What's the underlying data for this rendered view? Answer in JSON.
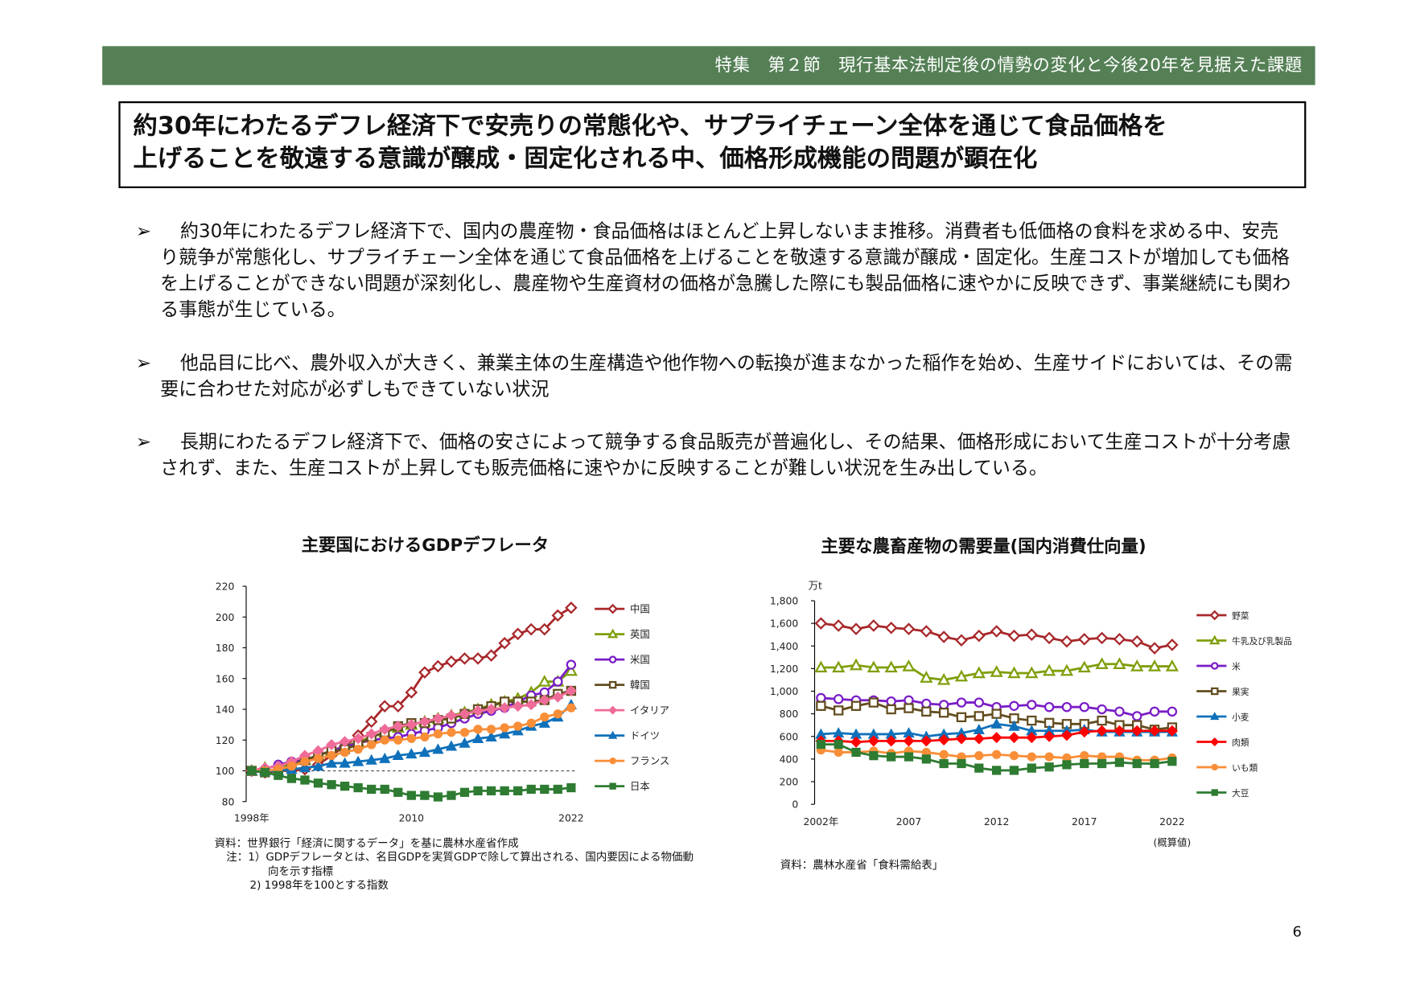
{
  "header": {
    "section": "特集　第２節　現行基本法制定後の情勢の変化と今後20年を見据えた課題"
  },
  "title": {
    "line1": "約30年にわたるデフレ経済下で安売りの常態化や、サプライチェーン全体を通じて食品価格を",
    "line2": "上げることを敬遠する意識が醸成・固定化される中、価格形成機能の問題が顕在化"
  },
  "bullet_marker": "➢",
  "bullets": [
    "約30年にわたるデフレ経済下で、国内の農産物・食品価格はほとんど上昇しないまま推移。消費者も低価格の食料を求める中、安売り競争が常態化し、サプライチェーン全体を通じて食品価格を上げることを敬遠する意識が醸成・固定化。生産コストが増加しても価格を上げることができない問題が深刻化し、農産物や生産資材の価格が急騰した際にも製品価格に速やかに反映できず、事業継続にも関わる事態が生じている。",
    "他品目に比べ、農外収入が大きく、兼業主体の生産構造や他作物への転換が進まなかった稲作を始め、生産サイドにおいては、その需要に合わせた対応が必ずしもできていない状況",
    "長期にわたるデフレ経済下で、価格の安さによって競争する食品販売が普遍化し、その結果、価格形成において生産コストが十分考慮されず、また、生産コストが上昇しても販売価格に速やかに反映することが難しい状況を生み出している。"
  ],
  "chart_data": [
    {
      "type": "line",
      "title": "主要国におけるGDPデフレータ",
      "x": [
        1998,
        1999,
        2000,
        2001,
        2002,
        2003,
        2004,
        2005,
        2006,
        2007,
        2008,
        2009,
        2010,
        2011,
        2012,
        2013,
        2014,
        2015,
        2016,
        2017,
        2018,
        2019,
        2020,
        2021,
        2022
      ],
      "x_tick_labels": [
        "1998年",
        "2010",
        "2022"
      ],
      "x_ticks": [
        1998,
        2010,
        2022
      ],
      "ylim": [
        80,
        220
      ],
      "y_ticks": [
        80,
        100,
        120,
        140,
        160,
        180,
        200,
        220
      ],
      "reference_line": 100,
      "legend_placement": "right",
      "series": [
        {
          "name": "中国",
          "color": "#A8282B",
          "marker": "diamond",
          "filled": false,
          "values": [
            100,
            99,
            100,
            100,
            101,
            104,
            110,
            116,
            123,
            132,
            142,
            142,
            151,
            164,
            168,
            171,
            173,
            173,
            175,
            183,
            189,
            192,
            192,
            201,
            206
          ]
        },
        {
          "name": "英国",
          "color": "#7F9F0A",
          "marker": "triangle",
          "filled": false,
          "values": [
            100,
            102,
            103,
            104,
            107,
            110,
            113,
            116,
            119,
            122,
            125,
            128,
            130,
            132,
            134,
            136,
            138,
            140,
            143,
            145,
            147,
            151,
            158,
            158,
            165
          ]
        },
        {
          "name": "米国",
          "color": "#7A1DC6",
          "marker": "circle",
          "filled": false,
          "values": [
            100,
            101,
            104,
            106,
            107,
            110,
            113,
            116,
            118,
            120,
            121,
            122,
            124,
            126,
            128,
            131,
            134,
            137,
            139,
            141,
            145,
            149,
            151,
            158,
            169
          ]
        },
        {
          "name": "韓国",
          "color": "#634D1F",
          "marker": "square",
          "filled": false,
          "values": [
            100,
            99,
            100,
            104,
            107,
            110,
            113,
            114,
            117,
            122,
            125,
            129,
            131,
            131,
            133,
            134,
            137,
            140,
            142,
            145,
            145,
            145,
            146,
            150,
            152
          ]
        },
        {
          "name": "イタリア",
          "color": "#F06C98",
          "marker": "diamond",
          "filled": true,
          "values": [
            100,
            102,
            103,
            106,
            110,
            113,
            117,
            119,
            121,
            124,
            127,
            129,
            130,
            132,
            134,
            136,
            137,
            139,
            140,
            141,
            142,
            143,
            146,
            148,
            152
          ]
        },
        {
          "name": "ドイツ",
          "color": "#1071BB",
          "marker": "triangle",
          "filled": true,
          "values": [
            100,
            100,
            100,
            101,
            102,
            103,
            105,
            105,
            106,
            107,
            108,
            110,
            111,
            112,
            114,
            116,
            118,
            121,
            122,
            124,
            126,
            129,
            131,
            135,
            143
          ]
        },
        {
          "name": "フランス",
          "color": "#F98E38",
          "marker": "circle",
          "filled": true,
          "values": [
            100,
            100,
            101,
            103,
            106,
            108,
            110,
            112,
            114,
            117,
            120,
            120,
            121,
            122,
            124,
            125,
            125,
            127,
            127,
            128,
            129,
            131,
            135,
            137,
            141
          ]
        },
        {
          "name": "日本",
          "color": "#2E7B32",
          "marker": "square",
          "filled": true,
          "values": [
            100,
            99,
            97,
            95,
            94,
            92,
            91,
            90,
            89,
            88,
            88,
            86,
            84,
            84,
            83,
            84,
            86,
            87,
            87,
            87,
            87,
            88,
            88,
            88,
            89
          ]
        }
      ],
      "notes": [
        "資料：世界銀行「経済に関するデータ」を基に農林水産省作成",
        "注：1）GDPデフレータとは、名目GDPを実質GDPで除して算出される、国内要因による物価動向を示す指標",
        "2) 1998年を100とする指数"
      ]
    },
    {
      "type": "line",
      "title": "主要な農畜産物の需要量(国内消費仕向量)",
      "ylabel": "万t",
      "x": [
        2002,
        2003,
        2004,
        2005,
        2006,
        2007,
        2008,
        2009,
        2010,
        2011,
        2012,
        2013,
        2014,
        2015,
        2016,
        2017,
        2018,
        2019,
        2020,
        2021,
        2022
      ],
      "x_tick_labels": [
        "2002年",
        "2007",
        "2012",
        "2017",
        "2022"
      ],
      "x_ticks": [
        2002,
        2007,
        2012,
        2017,
        2022
      ],
      "x_note": "(概算値)",
      "ylim": [
        0,
        1800
      ],
      "y_ticks": [
        0,
        200,
        400,
        600,
        800,
        1000,
        1200,
        1400,
        1600,
        1800
      ],
      "y_tick_labels": [
        "0",
        "200",
        "400",
        "600",
        "800",
        "1,000",
        "1,200",
        "1,400",
        "1,600",
        "1,800"
      ],
      "legend_placement": "right",
      "series": [
        {
          "name": "野菜",
          "color": "#A8282B",
          "marker": "diamond",
          "filled": false,
          "values": [
            1600,
            1580,
            1550,
            1580,
            1560,
            1550,
            1530,
            1480,
            1450,
            1490,
            1530,
            1490,
            1500,
            1470,
            1440,
            1460,
            1470,
            1460,
            1440,
            1380,
            1410
          ]
        },
        {
          "name": "牛乳及び乳製品",
          "color": "#7F9F0A",
          "marker": "triangle",
          "filled": false,
          "values": [
            1210,
            1210,
            1230,
            1210,
            1210,
            1220,
            1120,
            1100,
            1130,
            1160,
            1170,
            1160,
            1160,
            1180,
            1180,
            1210,
            1240,
            1240,
            1220,
            1220,
            1220
          ]
        },
        {
          "name": "米",
          "color": "#7A1DC6",
          "marker": "circle",
          "filled": false,
          "values": [
            940,
            930,
            920,
            920,
            910,
            920,
            890,
            880,
            900,
            900,
            860,
            870,
            880,
            860,
            860,
            860,
            840,
            820,
            780,
            820,
            820
          ]
        },
        {
          "name": "果実",
          "color": "#634D1F",
          "marker": "square",
          "filled": false,
          "values": [
            870,
            830,
            870,
            900,
            840,
            850,
            820,
            810,
            770,
            780,
            800,
            760,
            740,
            720,
            710,
            710,
            740,
            700,
            700,
            660,
            680
          ]
        },
        {
          "name": "小麦",
          "color": "#1071BB",
          "marker": "triangle",
          "filled": true,
          "values": [
            620,
            630,
            620,
            620,
            620,
            630,
            600,
            620,
            630,
            660,
            710,
            690,
            650,
            650,
            650,
            660,
            640,
            640,
            640,
            640,
            640
          ]
        },
        {
          "name": "肉類",
          "color": "#FF0000",
          "marker": "diamond",
          "filled": true,
          "values": [
            560,
            560,
            550,
            560,
            560,
            560,
            560,
            570,
            580,
            580,
            590,
            590,
            590,
            600,
            610,
            640,
            650,
            650,
            650,
            650,
            650
          ]
        },
        {
          "name": "いも類",
          "color": "#F98E38",
          "marker": "circle",
          "filled": true,
          "values": [
            480,
            460,
            460,
            470,
            450,
            470,
            460,
            440,
            420,
            430,
            440,
            430,
            420,
            420,
            410,
            430,
            420,
            420,
            390,
            390,
            410
          ]
        },
        {
          "name": "大豆",
          "color": "#2E7B32",
          "marker": "square",
          "filled": true,
          "values": [
            530,
            530,
            460,
            430,
            420,
            420,
            400,
            360,
            360,
            320,
            300,
            300,
            320,
            330,
            350,
            360,
            360,
            370,
            360,
            360,
            380
          ]
        }
      ],
      "notes": [
        "資料：農林水産省「食料需給表」"
      ]
    }
  ],
  "page_number": "6"
}
